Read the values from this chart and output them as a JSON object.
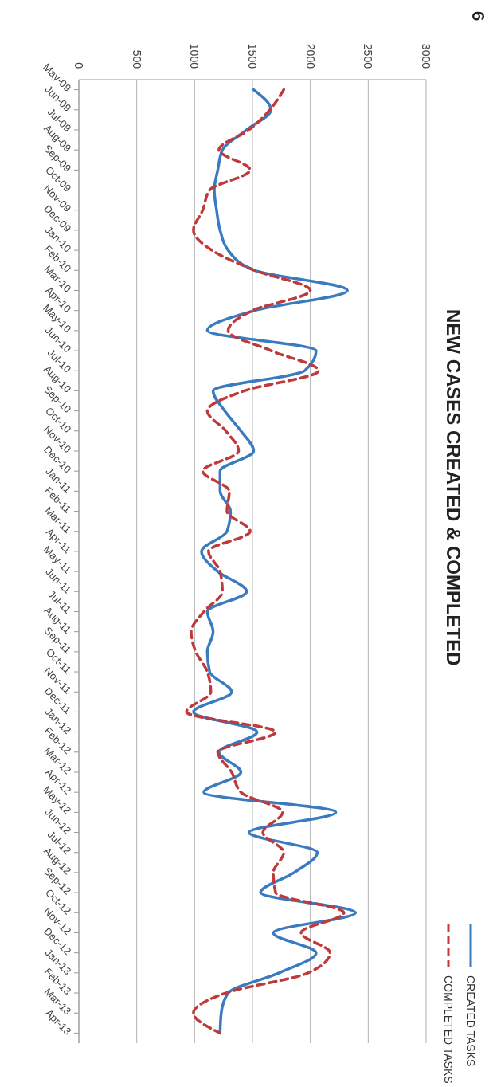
{
  "chart_data": {
    "type": "line",
    "title": "NEW CASES CREATED & COMPLETED",
    "annotations": [
      "6"
    ],
    "categories": [
      "May-09",
      "Jun-09",
      "Jul-09",
      "Aug-09",
      "Sep-09",
      "Oct-09",
      "Nov-09",
      "Dec-09",
      "Jan-10",
      "Feb-10",
      "Mar-10",
      "Apr-10",
      "May-10",
      "Jun-10",
      "Jul-10",
      "Aug-10",
      "Sep-10",
      "Oct-10",
      "Nov-10",
      "Dec-10",
      "Jan-11",
      "Feb-11",
      "Mar-11",
      "Apr-11",
      "May-11",
      "Jun-11",
      "Jul-11",
      "Aug-11",
      "Sep-11",
      "Oct-11",
      "Nov-11",
      "Dec-11",
      "Jan-12",
      "Feb-12",
      "Mar-12",
      "Apr-12",
      "May-12",
      "Jun-12",
      "Jul-12",
      "Aug-12",
      "Sep-12",
      "Oct-12",
      "Nov-12",
      "Dec-12",
      "Jan-13",
      "Feb-13",
      "Mar-13",
      "Apr-13"
    ],
    "series": [
      {
        "name": "CREATED TASKS",
        "color": "#3a7bc0",
        "line_style": "solid",
        "values": [
          1510,
          1660,
          1450,
          1240,
          1200,
          1170,
          1190,
          1220,
          1290,
          1520,
          2320,
          1520,
          1110,
          2050,
          1950,
          1160,
          1260,
          1400,
          1510,
          1220,
          1220,
          1310,
          1280,
          1060,
          1200,
          1450,
          1110,
          1160,
          1110,
          1130,
          1320,
          990,
          1540,
          1210,
          1400,
          1080,
          2220,
          1470,
          2060,
          1860,
          1570,
          2390,
          1680,
          2050,
          1730,
          1290,
          1230,
          1220
        ]
      },
      {
        "name": "COMPLETED TASKS",
        "color": "#c0393b",
        "line_style": "dashed",
        "values": [
          1770,
          1650,
          1470,
          1210,
          1480,
          1130,
          1070,
          990,
          1150,
          1520,
          2000,
          1500,
          1290,
          1660,
          2070,
          1430,
          1110,
          1270,
          1380,
          1070,
          1300,
          1280,
          1480,
          1120,
          1220,
          1240,
          1080,
          970,
          1010,
          1110,
          1140,
          930,
          1700,
          1200,
          1320,
          1400,
          1760,
          1590,
          1770,
          1680,
          1700,
          2290,
          1920,
          2170,
          1980,
          1270,
          990,
          1220
        ]
      }
    ],
    "orientation": "horizontal",
    "xlim": [
      0,
      3000
    ],
    "xticks": [
      0,
      500,
      1000,
      1500,
      2000,
      2500,
      3000
    ],
    "grid": "x",
    "legend": "bottom right",
    "marker": "none"
  }
}
